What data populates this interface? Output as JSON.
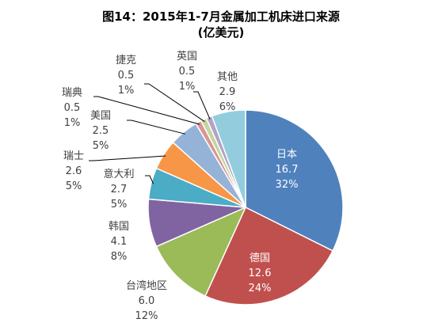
{
  "chart_data": {
    "type": "pie",
    "title": "图14：2015年1-7月金属加工机床进口来源",
    "subtitle": "(亿美元)",
    "start_angle_deg": 0,
    "direction": "clockwise",
    "slices": [
      {
        "name": "日本",
        "value": 16.7,
        "percent": "32%",
        "color": "#4F81BD"
      },
      {
        "name": "德国",
        "value": 12.6,
        "percent": "24%",
        "color": "#C0504D"
      },
      {
        "name": "台湾地区",
        "value": 6.0,
        "percent": "12%",
        "color": "#9BBB59"
      },
      {
        "name": "韩国",
        "value": 4.1,
        "percent": "8%",
        "color": "#8064A2"
      },
      {
        "name": "意大利",
        "value": 2.7,
        "percent": "5%",
        "color": "#4BACC6"
      },
      {
        "name": "瑞士",
        "value": 2.6,
        "percent": "5%",
        "color": "#F79646"
      },
      {
        "name": "美国",
        "value": 2.5,
        "percent": "5%",
        "color": "#95B3D7"
      },
      {
        "name": "瑞典",
        "value": 0.5,
        "percent": "1%",
        "color": "#D99694"
      },
      {
        "name": "捷克",
        "value": 0.5,
        "percent": "1%",
        "color": "#C3D69B"
      },
      {
        "name": "英国",
        "value": 0.5,
        "percent": "1%",
        "color": "#B2A2C7"
      },
      {
        "name": "其他",
        "value": 2.9,
        "percent": "6%",
        "color": "#93CDDD"
      }
    ]
  }
}
